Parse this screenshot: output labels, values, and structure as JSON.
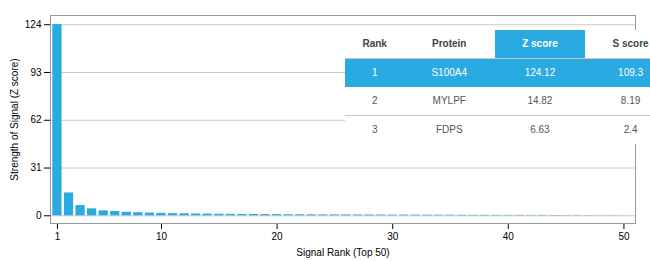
{
  "chart_data": {
    "type": "bar",
    "x": [
      1,
      2,
      3,
      4,
      5,
      6,
      7,
      8,
      9,
      10,
      11,
      12,
      13,
      14,
      15,
      16,
      17,
      18,
      19,
      20,
      21,
      22,
      23,
      24,
      25,
      26,
      27,
      28,
      29,
      30,
      31,
      32,
      33,
      34,
      35,
      36,
      37,
      38,
      39,
      40,
      41,
      42,
      43,
      44,
      45,
      46,
      47,
      48,
      49,
      50
    ],
    "values": [
      124.12,
      14.82,
      6.63,
      4.5,
      3.2,
      2.8,
      2.3,
      2.0,
      1.8,
      1.6,
      1.4,
      1.3,
      1.2,
      1.1,
      1.0,
      0.95,
      0.9,
      0.85,
      0.8,
      0.75,
      0.7,
      0.68,
      0.65,
      0.62,
      0.6,
      0.58,
      0.55,
      0.52,
      0.5,
      0.48,
      0.46,
      0.44,
      0.42,
      0.4,
      0.38,
      0.36,
      0.34,
      0.32,
      0.3,
      0.28,
      0.26,
      0.24,
      0.22,
      0.2,
      0.18,
      0.16,
      0.14,
      0.12,
      0.1,
      0.08
    ],
    "color": "#29abe2",
    "xlabel": "Signal Rank (Top 50)",
    "ylabel": "Strength of Signal (Z score)",
    "xlim": [
      0.4,
      51
    ],
    "ylim": [
      -5,
      130
    ],
    "xticks": [
      1,
      10,
      20,
      30,
      40,
      50
    ],
    "yticks": [
      0,
      31,
      62,
      93,
      124
    ],
    "grid": true,
    "table": {
      "headers": [
        "Rank",
        "Protein",
        "Z score",
        "S score"
      ],
      "rows": [
        [
          "1",
          "S100A4",
          "124.12",
          "109.3"
        ],
        [
          "2",
          "MYLPF",
          "14.82",
          "8.19"
        ],
        [
          "3",
          "FDPS",
          "6.63",
          "2.4"
        ]
      ]
    }
  }
}
